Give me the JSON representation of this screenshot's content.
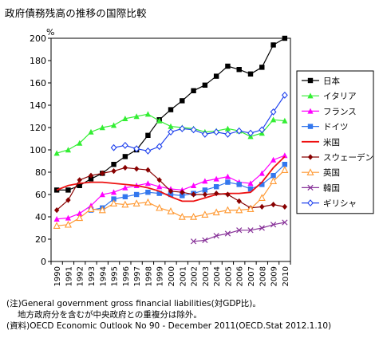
{
  "title": "政府債務残高の推移の国際比較",
  "chart_data": {
    "type": "line",
    "ylabel": "%",
    "ylim": [
      0,
      200
    ],
    "yticks": [
      0,
      20,
      40,
      60,
      80,
      100,
      120,
      140,
      160,
      180,
      200
    ],
    "grid": false,
    "legend_position": "right",
    "x": [
      "1990",
      "1991",
      "1992",
      "1993",
      "1994",
      "1995",
      "1996",
      "1997",
      "1998",
      "1999",
      "2000",
      "2001",
      "2002",
      "2003",
      "2004",
      "2005",
      "2006",
      "2007",
      "2008",
      "2009",
      "2010"
    ],
    "series": [
      {
        "name": "日本",
        "color": "#000000",
        "marker": "square-filled",
        "values": [
          64,
          64,
          68,
          74,
          79,
          87,
          94,
          100,
          113,
          127,
          136,
          144,
          153,
          158,
          166,
          175,
          172,
          168,
          174,
          194,
          200
        ]
      },
      {
        "name": "イタリア",
        "color": "#33ee33",
        "marker": "triangle-filled",
        "values": [
          97,
          100,
          106,
          116,
          120,
          122,
          128,
          130,
          132,
          126,
          121,
          120,
          119,
          116,
          117,
          119,
          117,
          112,
          115,
          127,
          126
        ]
      },
      {
        "name": "フランス",
        "color": "#ff00ff",
        "marker": "triangle-filled",
        "values": [
          38,
          39,
          43,
          50,
          60,
          62,
          66,
          68,
          70,
          67,
          65,
          64,
          68,
          72,
          74,
          76,
          71,
          70,
          79,
          91,
          95
        ]
      },
      {
        "name": "ドイツ",
        "color": "#3377ee",
        "marker": "square-filled",
        "values": [
          null,
          null,
          null,
          46,
          48,
          56,
          58,
          60,
          62,
          61,
          60,
          59,
          61,
          64,
          67,
          71,
          69,
          65,
          69,
          77,
          87
        ]
      },
      {
        "name": "米国",
        "color": "#ee1111",
        "marker": "none",
        "values": [
          64,
          68,
          70,
          71,
          71,
          70,
          69,
          68,
          66,
          63,
          58,
          54,
          54,
          57,
          60,
          61,
          61,
          62,
          71,
          84,
          94
        ]
      },
      {
        "name": "スウェーデン",
        "color": "#880000",
        "marker": "diamond-filled",
        "values": [
          46,
          55,
          73,
          77,
          79,
          81,
          84,
          83,
          82,
          73,
          63,
          62,
          60,
          60,
          61,
          60,
          54,
          48,
          49,
          51,
          49
        ]
      },
      {
        "name": "英国",
        "color": "#ff9933",
        "marker": "triangle-open",
        "values": [
          32,
          33,
          39,
          47,
          46,
          52,
          51,
          52,
          53,
          48,
          45,
          40,
          40,
          42,
          44,
          46,
          46,
          47,
          57,
          72,
          82
        ]
      },
      {
        "name": "韓国",
        "color": "#883399",
        "marker": "cross",
        "values": [
          null,
          null,
          null,
          null,
          null,
          null,
          null,
          null,
          null,
          null,
          null,
          null,
          18,
          19,
          23,
          25,
          28,
          28,
          30,
          33,
          35
        ]
      },
      {
        "name": "ギリシャ",
        "color": "#2244ee",
        "marker": "diamond-open",
        "values": [
          null,
          null,
          null,
          null,
          null,
          102,
          104,
          101,
          99,
          103,
          116,
          119,
          118,
          114,
          116,
          114,
          117,
          115,
          118,
          134,
          149
        ]
      }
    ]
  },
  "notes": [
    "(注)General government gross financial liabilities(対GDP比)。",
    "地方政府分を含むが中央政府との重複分は除外。",
    "(資料)OECD Economic Outlook No 90 - December 2011(OECD.Stat 2012.1.10)"
  ]
}
